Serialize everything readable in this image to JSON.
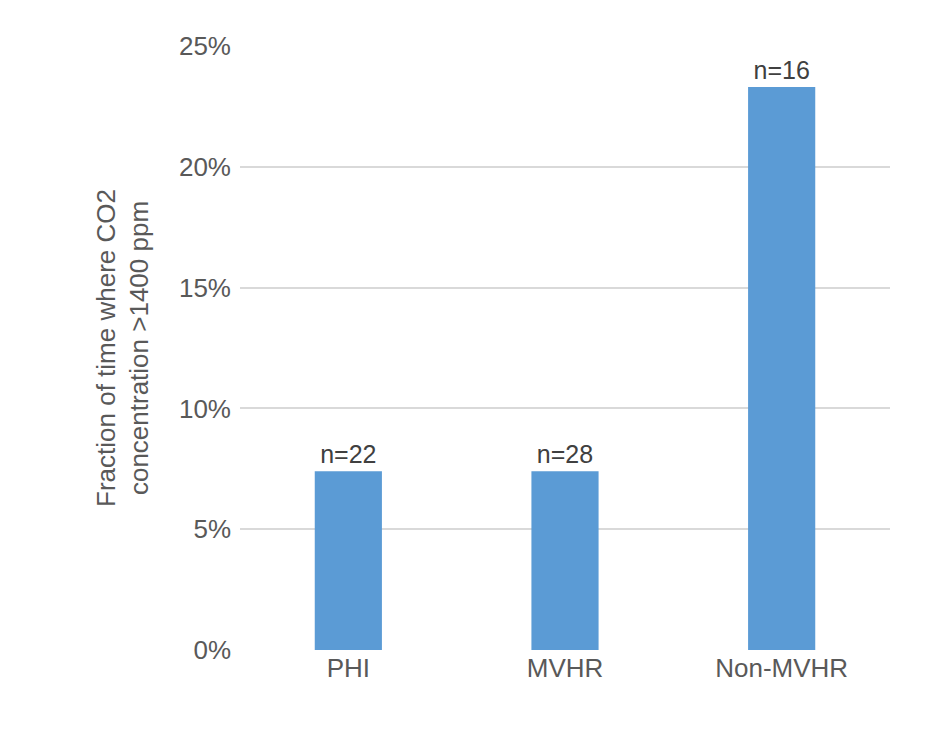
{
  "chart_data": {
    "type": "bar",
    "ylabel": "Fraction of time where CO2 concentration >1400 ppm",
    "categories": [
      "PHI",
      "MVHR",
      "Non-MVHR"
    ],
    "values": [
      7.4,
      7.4,
      23.3
    ],
    "annotations": [
      "n=22",
      "n=28",
      "n=16"
    ],
    "color": "#5b9bd5",
    "ylim": [
      0,
      25
    ],
    "yticks": [
      {
        "value": 0,
        "label": "0%"
      },
      {
        "value": 5,
        "label": "5%"
      },
      {
        "value": 10,
        "label": "10%"
      },
      {
        "value": 15,
        "label": "15%"
      },
      {
        "value": 20,
        "label": "20%"
      },
      {
        "value": 25,
        "label": "25%"
      }
    ],
    "grid": true
  }
}
